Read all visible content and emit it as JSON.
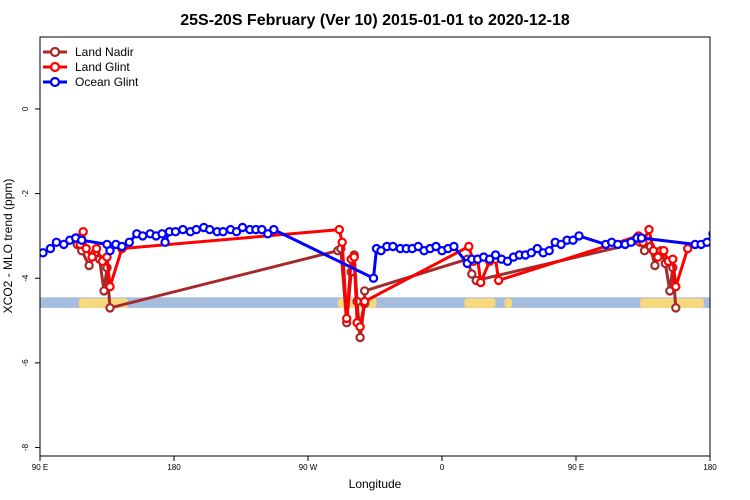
{
  "chart_data": {
    "type": "line",
    "title": "25S-20S February (Ver 10)   2015-01-01 to 2020-12-18",
    "xlabel": "Longitude",
    "ylabel": "XCO2 - MLO trend (ppm)",
    "x_unit": "degrees longitude (continuous, 90E = 90, 180 = 180, 90W = 270, 0 = 360, 90E = 450, 180 = 540)",
    "xlim": [
      90,
      540
    ],
    "ylim": [
      -8.2,
      1.7
    ],
    "x_ticks": [
      {
        "value": 90,
        "label": "90 E"
      },
      {
        "value": 180,
        "label": "180"
      },
      {
        "value": 270,
        "label": "90 W"
      },
      {
        "value": 360,
        "label": "0"
      },
      {
        "value": 450,
        "label": "90 E"
      },
      {
        "value": 540,
        "label": "180"
      }
    ],
    "y_ticks": [
      {
        "value": 0,
        "label": "0"
      },
      {
        "value": -2,
        "label": "-2"
      },
      {
        "value": -4,
        "label": "-4"
      },
      {
        "value": -6,
        "label": "-6"
      },
      {
        "value": -8,
        "label": "-8"
      }
    ],
    "legend_position": "top-left",
    "colors": {
      "land_nadir": "#a52a2a",
      "land_glint": "#ff0000",
      "ocean_glint": "#0000ff",
      "ocean_band": "#a5bcdc",
      "land_band": "#f7d87c"
    },
    "surface_band": {
      "y_top": -4.45,
      "y_bottom": -4.7,
      "land_segments": [
        [
          116,
          149
        ],
        [
          290,
          316
        ],
        [
          375,
          396
        ],
        [
          402,
          407
        ],
        [
          493,
          536
        ]
      ]
    },
    "series": [
      {
        "name": "Land Nadir",
        "color": "#a52a2a",
        "points": [
          [
            115,
            -3.2
          ],
          [
            118,
            -3.35
          ],
          [
            123,
            -3.7
          ],
          [
            127,
            -3.4
          ],
          [
            130,
            -3.55
          ],
          [
            133,
            -4.3
          ],
          [
            135,
            -3.75
          ],
          [
            137,
            -4.7
          ],
          [
            290,
            -3.35
          ],
          [
            292,
            -3.3
          ],
          [
            296,
            -5.05
          ],
          [
            299,
            -3.85
          ],
          [
            301,
            -3.45
          ],
          [
            303,
            -4.55
          ],
          [
            305,
            -5.4
          ],
          [
            308,
            -4.6
          ],
          [
            308,
            -4.3
          ],
          [
            377,
            -3.55
          ],
          [
            380,
            -3.9
          ],
          [
            383,
            -4.05
          ],
          [
            493,
            -3.15
          ],
          [
            496,
            -3.35
          ],
          [
            500,
            -3.25
          ],
          [
            503,
            -3.7
          ],
          [
            507,
            -3.35
          ],
          [
            510,
            -3.65
          ],
          [
            513,
            -4.3
          ],
          [
            515,
            -3.75
          ],
          [
            517,
            -4.7
          ]
        ]
      },
      {
        "name": "Land Glint",
        "color": "#ff0000",
        "points": [
          [
            115,
            -3.05
          ],
          [
            117,
            -3.2
          ],
          [
            119,
            -2.9
          ],
          [
            121,
            -3.3
          ],
          [
            125,
            -3.5
          ],
          [
            128,
            -3.3
          ],
          [
            132,
            -3.6
          ],
          [
            135,
            -3.5
          ],
          [
            137,
            -4.2
          ],
          [
            145,
            -3.3
          ],
          [
            291,
            -2.85
          ],
          [
            293,
            -3.15
          ],
          [
            296,
            -4.95
          ],
          [
            299,
            -3.55
          ],
          [
            301,
            -3.5
          ],
          [
            303,
            -5.05
          ],
          [
            305,
            -5.15
          ],
          [
            308,
            -4.55
          ],
          [
            378,
            -3.25
          ],
          [
            381,
            -3.6
          ],
          [
            384,
            -3.55
          ],
          [
            386,
            -4.1
          ],
          [
            392,
            -3.6
          ],
          [
            396,
            -3.55
          ],
          [
            398,
            -4.05
          ],
          [
            492,
            -3.0
          ],
          [
            495,
            -3.15
          ],
          [
            499,
            -2.85
          ],
          [
            502,
            -3.35
          ],
          [
            505,
            -3.5
          ],
          [
            509,
            -3.35
          ],
          [
            512,
            -3.6
          ],
          [
            515,
            -3.55
          ],
          [
            517,
            -4.2
          ],
          [
            525,
            -3.3
          ]
        ]
      },
      {
        "name": "Ocean Glint",
        "color": "#0000ff",
        "points": [
          [
            92,
            -3.4
          ],
          [
            97,
            -3.3
          ],
          [
            101,
            -3.15
          ],
          [
            106,
            -3.2
          ],
          [
            110,
            -3.1
          ],
          [
            114,
            -3.05
          ],
          [
            118,
            -3.1
          ],
          [
            135,
            -3.2
          ],
          [
            137,
            -3.35
          ],
          [
            141,
            -3.2
          ],
          [
            145,
            -3.25
          ],
          [
            150,
            -3.15
          ],
          [
            155,
            -2.95
          ],
          [
            159,
            -3.0
          ],
          [
            164,
            -2.95
          ],
          [
            168,
            -3.0
          ],
          [
            172,
            -2.95
          ],
          [
            174,
            -3.15
          ],
          [
            177,
            -2.9
          ],
          [
            181,
            -2.9
          ],
          [
            186,
            -2.85
          ],
          [
            191,
            -2.9
          ],
          [
            195,
            -2.85
          ],
          [
            200,
            -2.8
          ],
          [
            204,
            -2.85
          ],
          [
            209,
            -2.9
          ],
          [
            213,
            -2.9
          ],
          [
            218,
            -2.85
          ],
          [
            222,
            -2.9
          ],
          [
            226,
            -2.8
          ],
          [
            231,
            -2.85
          ],
          [
            235,
            -2.85
          ],
          [
            239,
            -2.85
          ],
          [
            243,
            -2.95
          ],
          [
            247,
            -2.85
          ],
          [
            314,
            -4.0
          ],
          [
            316,
            -3.3
          ],
          [
            319,
            -3.35
          ],
          [
            323,
            -3.25
          ],
          [
            327,
            -3.25
          ],
          [
            332,
            -3.3
          ],
          [
            336,
            -3.3
          ],
          [
            340,
            -3.3
          ],
          [
            344,
            -3.25
          ],
          [
            348,
            -3.35
          ],
          [
            352,
            -3.3
          ],
          [
            356,
            -3.25
          ],
          [
            360,
            -3.35
          ],
          [
            364,
            -3.3
          ],
          [
            368,
            -3.25
          ],
          [
            377,
            -3.65
          ],
          [
            380,
            -3.55
          ],
          [
            384,
            -3.55
          ],
          [
            388,
            -3.5
          ],
          [
            392,
            -3.55
          ],
          [
            396,
            -3.45
          ],
          [
            400,
            -3.55
          ],
          [
            404,
            -3.6
          ],
          [
            408,
            -3.5
          ],
          [
            412,
            -3.45
          ],
          [
            416,
            -3.45
          ],
          [
            420,
            -3.4
          ],
          [
            424,
            -3.3
          ],
          [
            428,
            -3.4
          ],
          [
            432,
            -3.35
          ],
          [
            436,
            -3.15
          ],
          [
            440,
            -3.2
          ],
          [
            444,
            -3.1
          ],
          [
            448,
            -3.1
          ],
          [
            452,
            -3.0
          ],
          [
            470,
            -3.2
          ],
          [
            474,
            -3.15
          ],
          [
            478,
            -3.2
          ],
          [
            483,
            -3.2
          ],
          [
            487,
            -3.15
          ],
          [
            491,
            -3.05
          ],
          [
            494,
            -3.05
          ],
          [
            530,
            -3.2
          ],
          [
            534,
            -3.2
          ],
          [
            538,
            -3.15
          ],
          [
            542,
            -2.95
          ]
        ]
      }
    ]
  }
}
